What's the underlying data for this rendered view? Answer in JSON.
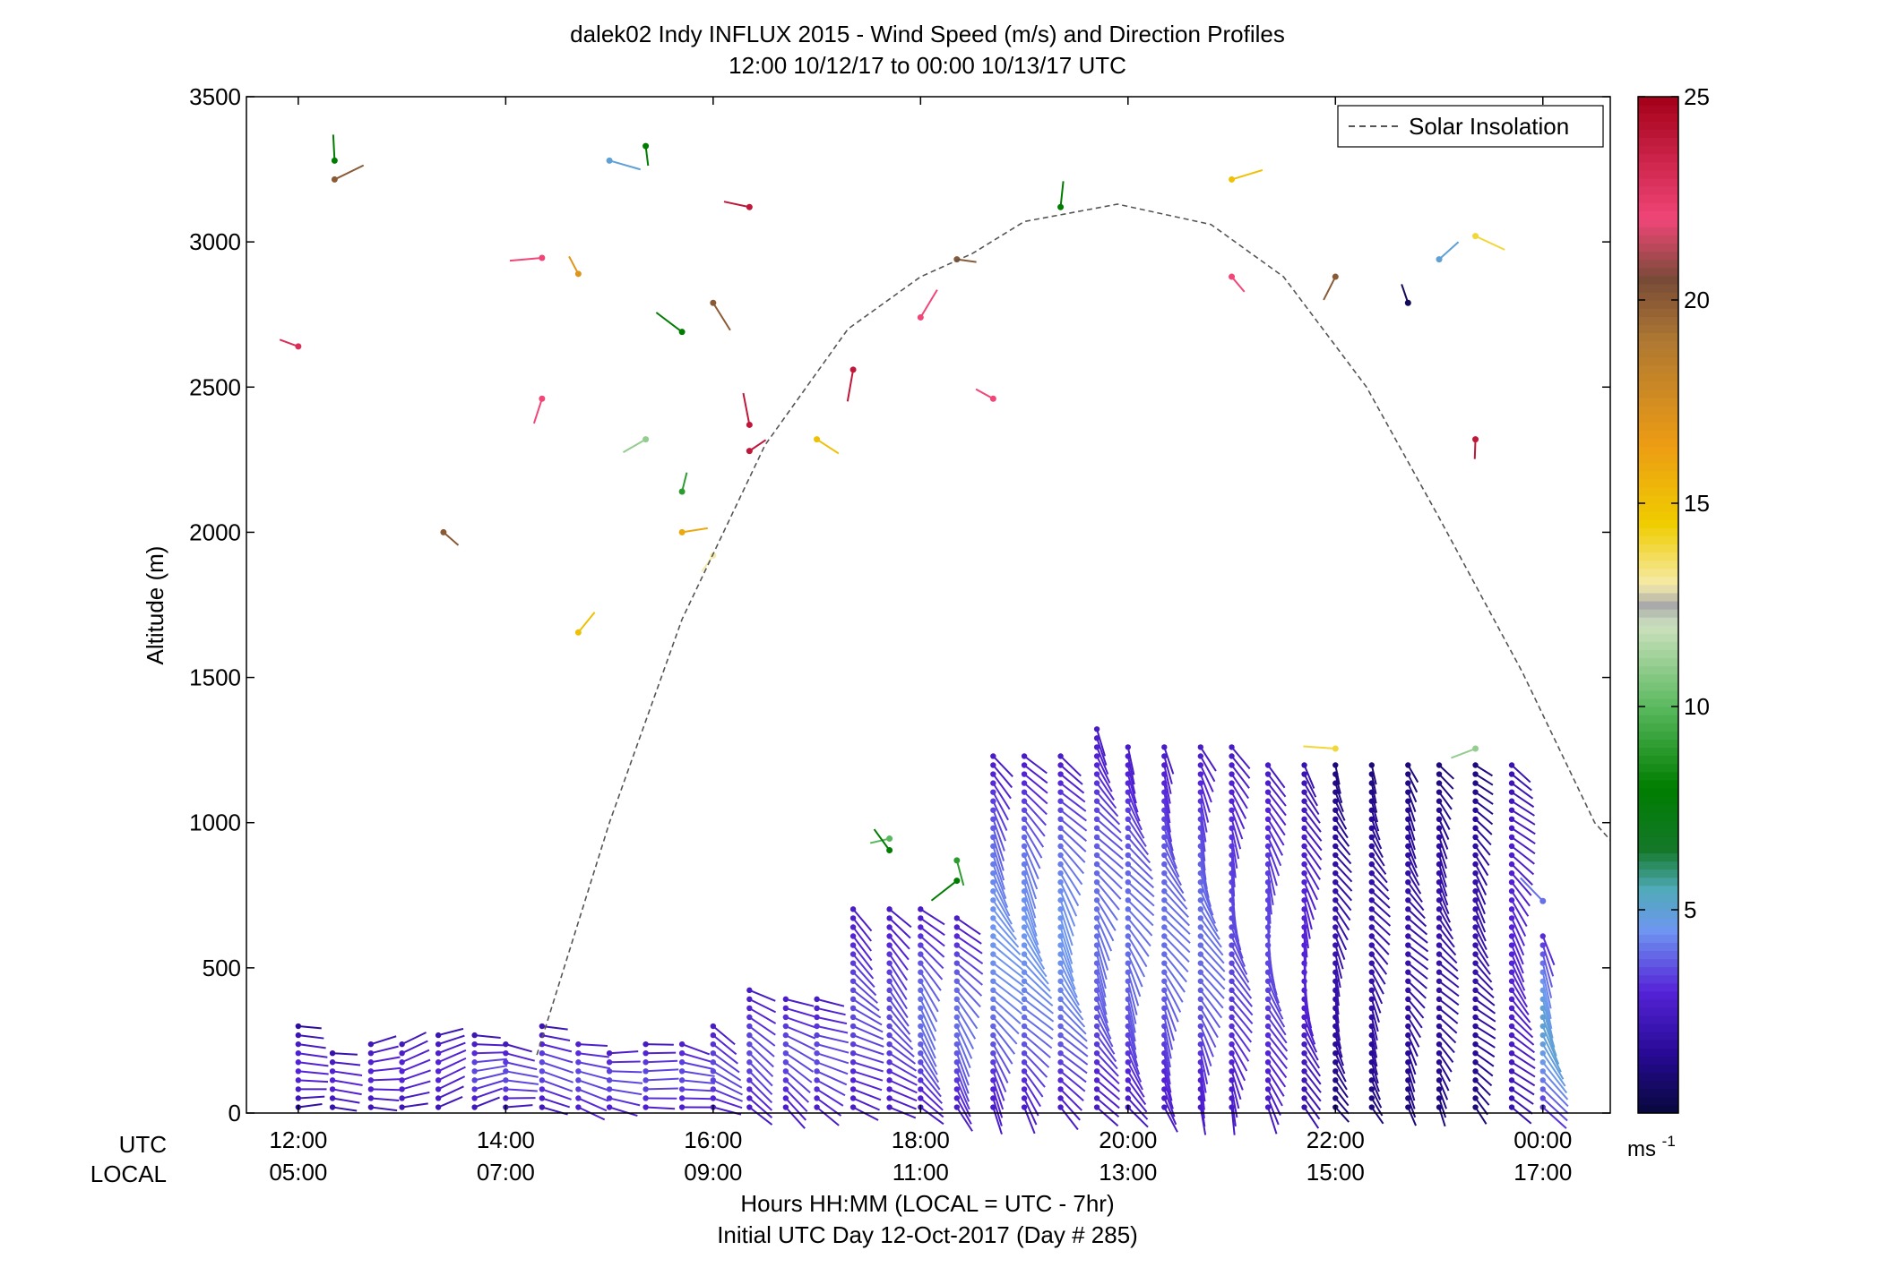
{
  "chart_data": {
    "type": "scatter",
    "title": "dalek02 Indy INFLUX 2015 - Wind Speed (m/s) and Direction Profiles",
    "subtitle": "12:00 10/12/17 to 00:00 10/13/17  UTC",
    "ylabel": "Altitude (m)",
    "xlabel": "Hours HH:MM  (LOCAL = UTC - 7hr)",
    "xlabel2": "Initial UTC Day 12-Oct-2017 (Day # 285)",
    "x_row_labels": [
      "UTC",
      "LOCAL"
    ],
    "x_range_hours_utc": [
      11.5,
      24.65
    ],
    "ylim": [
      0,
      3500
    ],
    "y_ticks": [
      0,
      500,
      1000,
      1500,
      2000,
      2500,
      3000,
      3500
    ],
    "x_ticks": [
      {
        "utc_hour": 12,
        "utc": "12:00",
        "local": "05:00"
      },
      {
        "utc_hour": 14,
        "utc": "14:00",
        "local": "07:00"
      },
      {
        "utc_hour": 16,
        "utc": "16:00",
        "local": "09:00"
      },
      {
        "utc_hour": 18,
        "utc": "18:00",
        "local": "11:00"
      },
      {
        "utc_hour": 20,
        "utc": "20:00",
        "local": "13:00"
      },
      {
        "utc_hour": 22,
        "utc": "22:00",
        "local": "15:00"
      },
      {
        "utc_hour": 24,
        "utc": "00:00",
        "local": "17:00"
      }
    ],
    "legend": {
      "entries": [
        "Solar Insolation"
      ],
      "placement": "top-right"
    },
    "colorbar": {
      "min": 0,
      "max": 25,
      "ticks": [
        5,
        10,
        15,
        20,
        25
      ],
      "unit": "ms",
      "unit_exp": "-1"
    },
    "solar_insolation": {
      "style": "dashed",
      "color": "#555555",
      "peak_altitude": 3130,
      "peak_hour_utc": 19.9,
      "points": [
        [
          14.3,
          200
        ],
        [
          15.0,
          1000
        ],
        [
          15.7,
          1700
        ],
        [
          16.5,
          2300
        ],
        [
          17.3,
          2700
        ],
        [
          18.0,
          2880
        ],
        [
          18.5,
          2960
        ],
        [
          19.0,
          3070
        ],
        [
          19.9,
          3130
        ],
        [
          20.8,
          3060
        ],
        [
          21.5,
          2880
        ],
        [
          22.3,
          2500
        ],
        [
          23.0,
          2050
        ],
        [
          23.8,
          1520
        ],
        [
          24.5,
          1000
        ],
        [
          24.65,
          940
        ]
      ]
    },
    "profiles": [
      {
        "utc_hour": 12.0,
        "top": 310,
        "dir_deg": 260,
        "speed_low": 1.5,
        "speed_high": 3
      },
      {
        "utc_hour": 12.33,
        "top": 230,
        "dir_deg": 262,
        "speed_low": 1.5,
        "speed_high": 3
      },
      {
        "utc_hour": 12.7,
        "top": 260,
        "dir_deg": 262,
        "speed_low": 2,
        "speed_high": 3
      },
      {
        "utc_hour": 13.0,
        "top": 265,
        "dir_deg": 262,
        "speed_low": 2,
        "speed_high": 3
      },
      {
        "utc_hour": 13.35,
        "top": 280,
        "dir_deg": 262,
        "speed_low": 2,
        "speed_high": 3
      },
      {
        "utc_hour": 13.7,
        "top": 280,
        "dir_deg": 265,
        "speed_low": 2,
        "speed_high": 3.5
      },
      {
        "utc_hour": 14.0,
        "top": 260,
        "dir_deg": 268,
        "speed_low": 2,
        "speed_high": 3.5
      },
      {
        "utc_hour": 14.35,
        "top": 310,
        "dir_deg": 272,
        "speed_low": 2,
        "speed_high": 3.5
      },
      {
        "utc_hour": 14.7,
        "top": 260,
        "dir_deg": 278,
        "speed_low": 2.5,
        "speed_high": 3.5
      },
      {
        "utc_hour": 15.0,
        "top": 220,
        "dir_deg": 282,
        "speed_low": 2.5,
        "speed_high": 3.5
      },
      {
        "utc_hour": 15.35,
        "top": 240,
        "dir_deg": 285,
        "speed_low": 2.5,
        "speed_high": 3.5
      },
      {
        "utc_hour": 15.7,
        "top": 260,
        "dir_deg": 288,
        "speed_low": 2.5,
        "speed_high": 3.5
      },
      {
        "utc_hour": 16.0,
        "top": 310,
        "dir_deg": 292,
        "speed_low": 2.5,
        "speed_high": 3.5
      },
      {
        "utc_hour": 16.35,
        "top": 430,
        "dir_deg": 298,
        "speed_low": 2.5,
        "speed_high": 3.5
      },
      {
        "utc_hour": 16.7,
        "top": 420,
        "dir_deg": 300,
        "speed_low": 2.5,
        "speed_high": 3.5
      },
      {
        "utc_hour": 17.0,
        "top": 400,
        "dir_deg": 300,
        "speed_low": 2.5,
        "speed_high": 3.5
      },
      {
        "utc_hour": 17.35,
        "top": 730,
        "dir_deg": 305,
        "speed_low": 2.5,
        "speed_high": 3.5
      },
      {
        "utc_hour": 17.7,
        "top": 720,
        "dir_deg": 310,
        "speed_low": 2.5,
        "speed_high": 3.5
      },
      {
        "utc_hour": 18.0,
        "top": 720,
        "dir_deg": 318,
        "speed_low": 2.5,
        "speed_high": 4
      },
      {
        "utc_hour": 18.35,
        "top": 690,
        "dir_deg": 322,
        "speed_low": 2.5,
        "speed_high": 4
      },
      {
        "utc_hour": 18.7,
        "top": 1250,
        "dir_deg": 325,
        "speed_low": 2.5,
        "speed_high": 4.5
      },
      {
        "utc_hour": 19.0,
        "top": 1250,
        "dir_deg": 325,
        "speed_low": 2.5,
        "speed_high": 4.5
      },
      {
        "utc_hour": 19.35,
        "top": 1250,
        "dir_deg": 325,
        "speed_low": 2.5,
        "speed_high": 4.5
      },
      {
        "utc_hour": 19.7,
        "top": 1340,
        "dir_deg": 328,
        "speed_low": 2.5,
        "speed_high": 4
      },
      {
        "utc_hour": 20.0,
        "top": 1290,
        "dir_deg": 330,
        "speed_low": 2.5,
        "speed_high": 4
      },
      {
        "utc_hour": 20.35,
        "top": 1290,
        "dir_deg": 332,
        "speed_low": 2.5,
        "speed_high": 4
      },
      {
        "utc_hour": 20.7,
        "top": 1290,
        "dir_deg": 335,
        "speed_low": 2.5,
        "speed_high": 4
      },
      {
        "utc_hour": 21.0,
        "top": 1290,
        "dir_deg": 338,
        "speed_low": 2.5,
        "speed_high": 3.5
      },
      {
        "utc_hour": 21.35,
        "top": 1220,
        "dir_deg": 340,
        "speed_low": 2.5,
        "speed_high": 3.5
      },
      {
        "utc_hour": 21.7,
        "top": 1210,
        "dir_deg": 340,
        "speed_low": 2,
        "speed_high": 3
      },
      {
        "utc_hour": 22.0,
        "top": 1210,
        "dir_deg": 335,
        "speed_low": 1,
        "speed_high": 2
      },
      {
        "utc_hour": 22.35,
        "top": 1210,
        "dir_deg": 330,
        "speed_low": 1,
        "speed_high": 2
      },
      {
        "utc_hour": 22.7,
        "top": 1200,
        "dir_deg": 325,
        "speed_low": 1,
        "speed_high": 2
      },
      {
        "utc_hour": 23.0,
        "top": 1220,
        "dir_deg": 325,
        "speed_low": 1,
        "speed_high": 2
      },
      {
        "utc_hour": 23.35,
        "top": 1220,
        "dir_deg": 320,
        "speed_low": 1,
        "speed_high": 2
      },
      {
        "utc_hour": 23.7,
        "top": 1210,
        "dir_deg": 320,
        "speed_low": 2,
        "speed_high": 3
      },
      {
        "utc_hour": 24.0,
        "top": 620,
        "dir_deg": 330,
        "speed_low": 3,
        "speed_high": 5
      }
    ],
    "scattered_points": [
      {
        "utc_hour": 12.0,
        "alt": 2640,
        "speed": 23
      },
      {
        "utc_hour": 12.35,
        "alt": 3280,
        "speed": 8
      },
      {
        "utc_hour": 12.35,
        "alt": 3215,
        "speed": 20
      },
      {
        "utc_hour": 13.4,
        "alt": 2000,
        "speed": 20
      },
      {
        "utc_hour": 14.35,
        "alt": 2460,
        "speed": 22
      },
      {
        "utc_hour": 14.35,
        "alt": 2945,
        "speed": 22
      },
      {
        "utc_hour": 14.7,
        "alt": 2890,
        "speed": 17
      },
      {
        "utc_hour": 14.7,
        "alt": 1655,
        "speed": 15
      },
      {
        "utc_hour": 15.0,
        "alt": 3280,
        "speed": 5
      },
      {
        "utc_hour": 15.35,
        "alt": 3330,
        "speed": 8
      },
      {
        "utc_hour": 15.35,
        "alt": 2320,
        "speed": 11
      },
      {
        "utc_hour": 15.7,
        "alt": 2690,
        "speed": 8
      },
      {
        "utc_hour": 15.7,
        "alt": 2140,
        "speed": 9
      },
      {
        "utc_hour": 15.7,
        "alt": 2000,
        "speed": 16
      },
      {
        "utc_hour": 16.0,
        "alt": 2790,
        "speed": 20
      },
      {
        "utc_hour": 16.0,
        "alt": 1920,
        "speed": 13
      },
      {
        "utc_hour": 16.35,
        "alt": 3120,
        "speed": 24
      },
      {
        "utc_hour": 16.35,
        "alt": 2370,
        "speed": 24
      },
      {
        "utc_hour": 16.35,
        "alt": 2280,
        "speed": 24
      },
      {
        "utc_hour": 17.0,
        "alt": 2320,
        "speed": 15
      },
      {
        "utc_hour": 17.35,
        "alt": 2560,
        "speed": 24
      },
      {
        "utc_hour": 17.7,
        "alt": 945,
        "speed": 10
      },
      {
        "utc_hour": 17.7,
        "alt": 905,
        "speed": 8
      },
      {
        "utc_hour": 18.0,
        "alt": 2740,
        "speed": 22
      },
      {
        "utc_hour": 18.35,
        "alt": 2940,
        "speed": 20
      },
      {
        "utc_hour": 18.35,
        "alt": 870,
        "speed": 9
      },
      {
        "utc_hour": 18.35,
        "alt": 800,
        "speed": 8
      },
      {
        "utc_hour": 18.7,
        "alt": 2460,
        "speed": 22
      },
      {
        "utc_hour": 19.35,
        "alt": 3120,
        "speed": 8
      },
      {
        "utc_hour": 21.0,
        "alt": 3215,
        "speed": 15
      },
      {
        "utc_hour": 21.0,
        "alt": 2880,
        "speed": 22
      },
      {
        "utc_hour": 22.0,
        "alt": 2880,
        "speed": 20
      },
      {
        "utc_hour": 22.0,
        "alt": 1255,
        "speed": 14
      },
      {
        "utc_hour": 22.7,
        "alt": 2790,
        "speed": 0.5
      },
      {
        "utc_hour": 23.0,
        "alt": 2940,
        "speed": 5
      },
      {
        "utc_hour": 23.35,
        "alt": 3020,
        "speed": 14
      },
      {
        "utc_hour": 23.35,
        "alt": 2320,
        "speed": 24
      },
      {
        "utc_hour": 23.35,
        "alt": 1255,
        "speed": 11
      },
      {
        "utc_hour": 24.0,
        "alt": 730,
        "speed": 4
      }
    ]
  }
}
